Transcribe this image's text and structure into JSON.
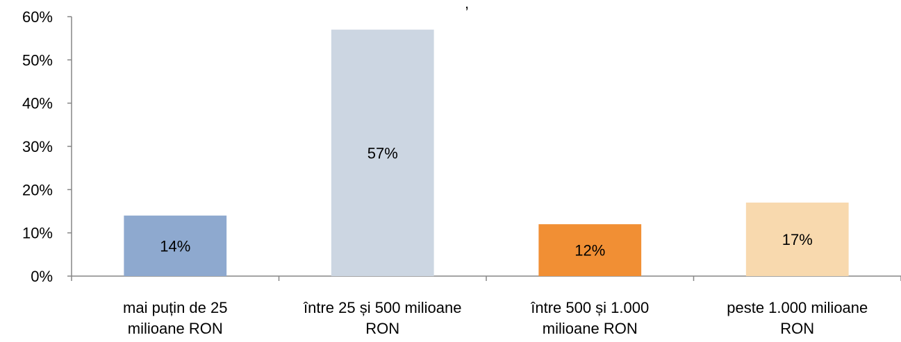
{
  "chart_data": {
    "type": "bar",
    "title": ",",
    "categories": [
      "mai puțin de 25 milioane RON",
      "între 25 și 500 milioane RON",
      "între 500 și 1.000 milioane RON",
      "peste 1.000 milioane RON"
    ],
    "category_lines": [
      [
        "mai puțin de 25",
        "milioane RON"
      ],
      [
        "între 25 și 500 milioane",
        "RON"
      ],
      [
        "între 500 și 1.000",
        "milioane RON"
      ],
      [
        "peste 1.000 milioane",
        "RON"
      ]
    ],
    "values": [
      14,
      57,
      12,
      17
    ],
    "data_labels": [
      "14%",
      "57%",
      "12%",
      "17%"
    ],
    "colors": [
      "#8EA9CF",
      "#CCD6E2",
      "#F18F34",
      "#F8D9AE"
    ],
    "ylim": [
      0,
      60
    ],
    "yticks": [
      0,
      10,
      20,
      30,
      40,
      50,
      60
    ],
    "ytick_labels": [
      "0%",
      "10%",
      "20%",
      "30%",
      "40%",
      "50%",
      "60%"
    ],
    "xlabel": "",
    "ylabel": "",
    "grid": false,
    "legend": "none"
  }
}
